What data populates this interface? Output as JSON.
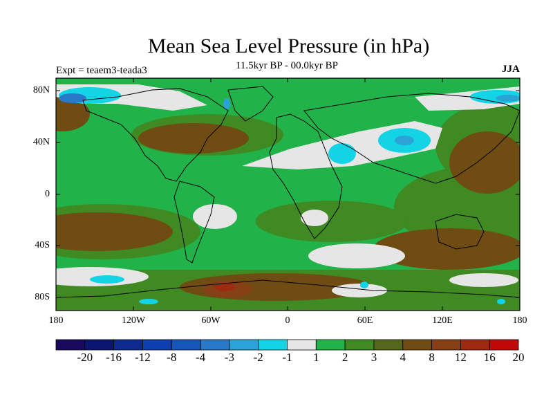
{
  "title": "Mean Sea Level Pressure (in hPa)",
  "subtitle": "11.5kyr BP - 00.0kyr BP",
  "experiment": "Expt = teaem3-teada3",
  "season": "JJA",
  "lat_labels": [
    "80N",
    "40N",
    "0",
    "40S",
    "80S"
  ],
  "lon_labels": [
    "180",
    "120W",
    "60W",
    "0",
    "60E",
    "120E",
    "180"
  ],
  "colorbar": {
    "colors": [
      "#1a0a5e",
      "#0c1670",
      "#0d2a90",
      "#0f3fae",
      "#1656b8",
      "#2a78c8",
      "#2aa3d6",
      "#12d4e4",
      "#e6e6e6",
      "#22b24a",
      "#3f8a22",
      "#55671a",
      "#6e4c12",
      "#874016",
      "#9e2a12",
      "#c00a0a"
    ],
    "labels": [
      "-20",
      "-16",
      "-12",
      "-8",
      "-4",
      "-3",
      "-2",
      "-1",
      "1",
      "2",
      "3",
      "4",
      "8",
      "12",
      "16",
      "20"
    ]
  }
}
